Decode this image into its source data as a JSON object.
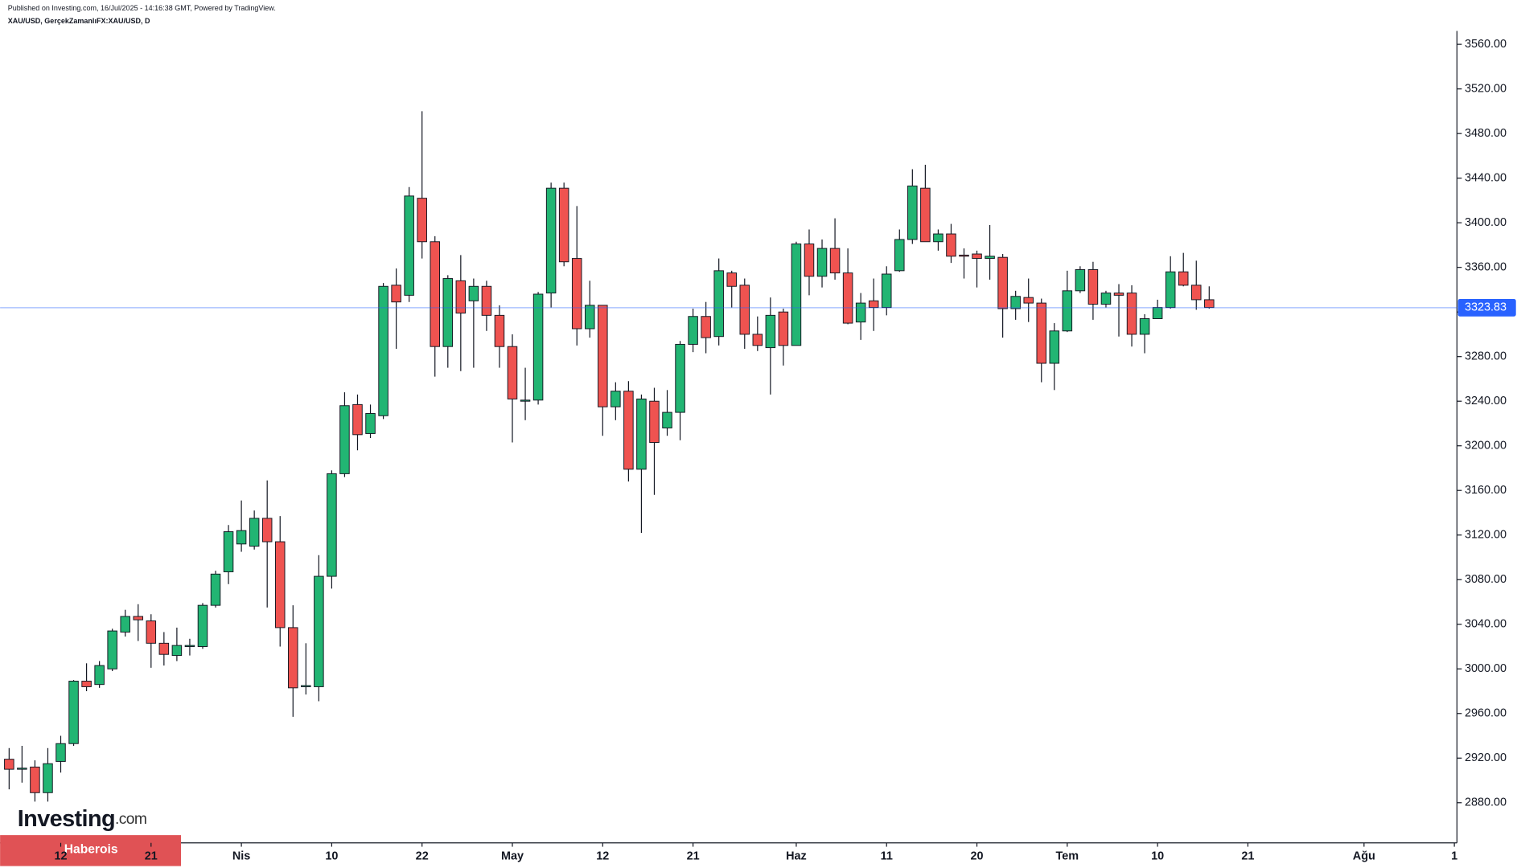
{
  "header": {
    "published": "Published on Investing.com, 16/Jul/2025 - 14:16:38 GMT, Powered by TradingView.",
    "symbol": "XAU/USD, GerçekZamanlıFX:XAU/USD, D"
  },
  "logo": {
    "brand": "Investing",
    "suffix": ".com",
    "badge": "Haberois"
  },
  "chart_data": {
    "type": "candlestick",
    "up_color": "#22b573",
    "down_color": "#ef5350",
    "last_price": 3323.83,
    "last_price_color": "#2962ff",
    "ylim": [
      2844,
      3572
    ],
    "yticks": [
      {
        "value": 2880,
        "label": "2880.00"
      },
      {
        "value": 2920,
        "label": "2920.00"
      },
      {
        "value": 2960,
        "label": "2960.00"
      },
      {
        "value": 3000,
        "label": "3000.00"
      },
      {
        "value": 3040,
        "label": "3040.00"
      },
      {
        "value": 3080,
        "label": "3080.00"
      },
      {
        "value": 3120,
        "label": "3120.00"
      },
      {
        "value": 3160,
        "label": "3160.00"
      },
      {
        "value": 3200,
        "label": "3200.00"
      },
      {
        "value": 3240,
        "label": "3240.00"
      },
      {
        "value": 3280,
        "label": "3280.00"
      },
      {
        "value": 3320,
        "label": "3320.00"
      },
      {
        "value": 3360,
        "label": "3360.00"
      },
      {
        "value": 3400,
        "label": "3400.00"
      },
      {
        "value": 3440,
        "label": "3440.00"
      },
      {
        "value": 3480,
        "label": "3480.00"
      },
      {
        "value": 3520,
        "label": "3520.00"
      },
      {
        "value": 3560,
        "label": "3560.00"
      }
    ],
    "xlim": [
      -0.7,
      112.2
    ],
    "xticks": [
      {
        "value": 4,
        "label": "12"
      },
      {
        "value": 11,
        "label": "21"
      },
      {
        "value": 18,
        "label": "Nis"
      },
      {
        "value": 25,
        "label": "10"
      },
      {
        "value": 32,
        "label": "22"
      },
      {
        "value": 39,
        "label": "May"
      },
      {
        "value": 46,
        "label": "12"
      },
      {
        "value": 53,
        "label": "21"
      },
      {
        "value": 61,
        "label": "Haz"
      },
      {
        "value": 68,
        "label": "11"
      },
      {
        "value": 75,
        "label": "20"
      },
      {
        "value": 82,
        "label": "Tem"
      },
      {
        "value": 89,
        "label": "10"
      },
      {
        "value": 96,
        "label": "21"
      },
      {
        "value": 105,
        "label": "Ağu"
      },
      {
        "value": 112,
        "label": "1"
      }
    ],
    "open": [
      2919,
      2910,
      2912,
      2889,
      2917,
      2933,
      2989,
      2986,
      3000,
      3033,
      3047,
      3043,
      3023,
      3012,
      3020,
      3020,
      3057,
      3087,
      3112,
      3110,
      3135,
      3114,
      3037,
      2984,
      2984,
      3083,
      3175,
      3237,
      3211,
      3227,
      3344,
      3335,
      3422,
      3383,
      3289,
      3348,
      3330,
      3343,
      3317,
      3289,
      3240,
      3241,
      3337,
      3431,
      3368,
      3305,
      3326,
      3235,
      3249,
      3179,
      3240,
      3216,
      3230,
      3291,
      3316,
      3298,
      3355,
      3344,
      3300,
      3288,
      3320,
      3290,
      3381,
      3352,
      3377,
      3355,
      3311,
      3330,
      3324,
      3357,
      3385,
      3431,
      3383,
      3390,
      3371,
      3372,
      3368,
      3369,
      3323,
      3333,
      3328,
      3274,
      3303,
      3339,
      3358,
      3327,
      3337,
      3337,
      3300,
      3314,
      3324,
      3356,
      3344,
      3331
    ],
    "high": [
      2929,
      2931,
      2918,
      2929,
      2940,
      2990,
      3005,
      3007,
      3036,
      3053,
      3058,
      3049,
      3033,
      3037,
      3027,
      3059,
      3088,
      3129,
      3151,
      3142,
      3169,
      3137,
      3057,
      3023,
      3102,
      3178,
      3248,
      3246,
      3237,
      3346,
      3359,
      3432,
      3500,
      3388,
      3353,
      3371,
      3350,
      3348,
      3326,
      3300,
      3270,
      3338,
      3436,
      3436,
      3415,
      3348,
      3326,
      3257,
      3258,
      3246,
      3252,
      3250,
      3294,
      3323,
      3329,
      3368,
      3357,
      3350,
      3316,
      3333,
      3323,
      3383,
      3394,
      3385,
      3404,
      3377,
      3337,
      3350,
      3361,
      3394,
      3448,
      3452,
      3394,
      3399,
      3377,
      3375,
      3398,
      3372,
      3339,
      3350,
      3332,
      3310,
      3357,
      3361,
      3365,
      3339,
      3345,
      3344,
      3318,
      3331,
      3370,
      3373,
      3366,
      3343
    ],
    "low": [
      2892,
      2898,
      2881,
      2881,
      2907,
      2931,
      2980,
      2983,
      2998,
      3029,
      3025,
      3001,
      3003,
      3007,
      3012,
      3018,
      3055,
      3076,
      3105,
      3107,
      3055,
      3020,
      2957,
      2977,
      2971,
      3072,
      3172,
      3196,
      3207,
      3224,
      3287,
      3329,
      3368,
      3262,
      3270,
      3267,
      3270,
      3303,
      3270,
      3203,
      3223,
      3237,
      3324,
      3361,
      3290,
      3297,
      3209,
      3223,
      3168,
      3122,
      3156,
      3209,
      3205,
      3284,
      3283,
      3290,
      3324,
      3287,
      3285,
      3246,
      3272,
      3290,
      3335,
      3342,
      3349,
      3309,
      3295,
      3303,
      3317,
      3356,
      3381,
      3383,
      3375,
      3364,
      3350,
      3342,
      3349,
      3297,
      3313,
      3311,
      3257,
      3250,
      3302,
      3337,
      3313,
      3324,
      3298,
      3289,
      3283,
      3314,
      3323,
      3343,
      3322,
      3323
    ],
    "close": [
      2910,
      2911,
      2889,
      2915,
      2933,
      2989,
      2984,
      3003,
      3034,
      3047,
      3044,
      3023,
      3013,
      3021,
      3021,
      3057,
      3085,
      3123,
      3124,
      3135,
      3114,
      3037,
      2983,
      2985,
      3083,
      3175,
      3236,
      3210,
      3229,
      3343,
      3329,
      3424,
      3383,
      3289,
      3350,
      3319,
      3343,
      3317,
      3289,
      3242,
      3241,
      3336,
      3431,
      3365,
      3305,
      3326,
      3235,
      3249,
      3179,
      3242,
      3203,
      3230,
      3291,
      3316,
      3297,
      3357,
      3343,
      3300,
      3290,
      3317,
      3290,
      3381,
      3352,
      3377,
      3355,
      3310,
      3328,
      3324,
      3354,
      3385,
      3433,
      3383,
      3390,
      3370,
      3370,
      3368,
      3370,
      3323,
      3334,
      3328,
      3274,
      3303,
      3339,
      3358,
      3327,
      3337,
      3335,
      3300,
      3314,
      3324,
      3356,
      3344,
      3331,
      3324
    ]
  }
}
